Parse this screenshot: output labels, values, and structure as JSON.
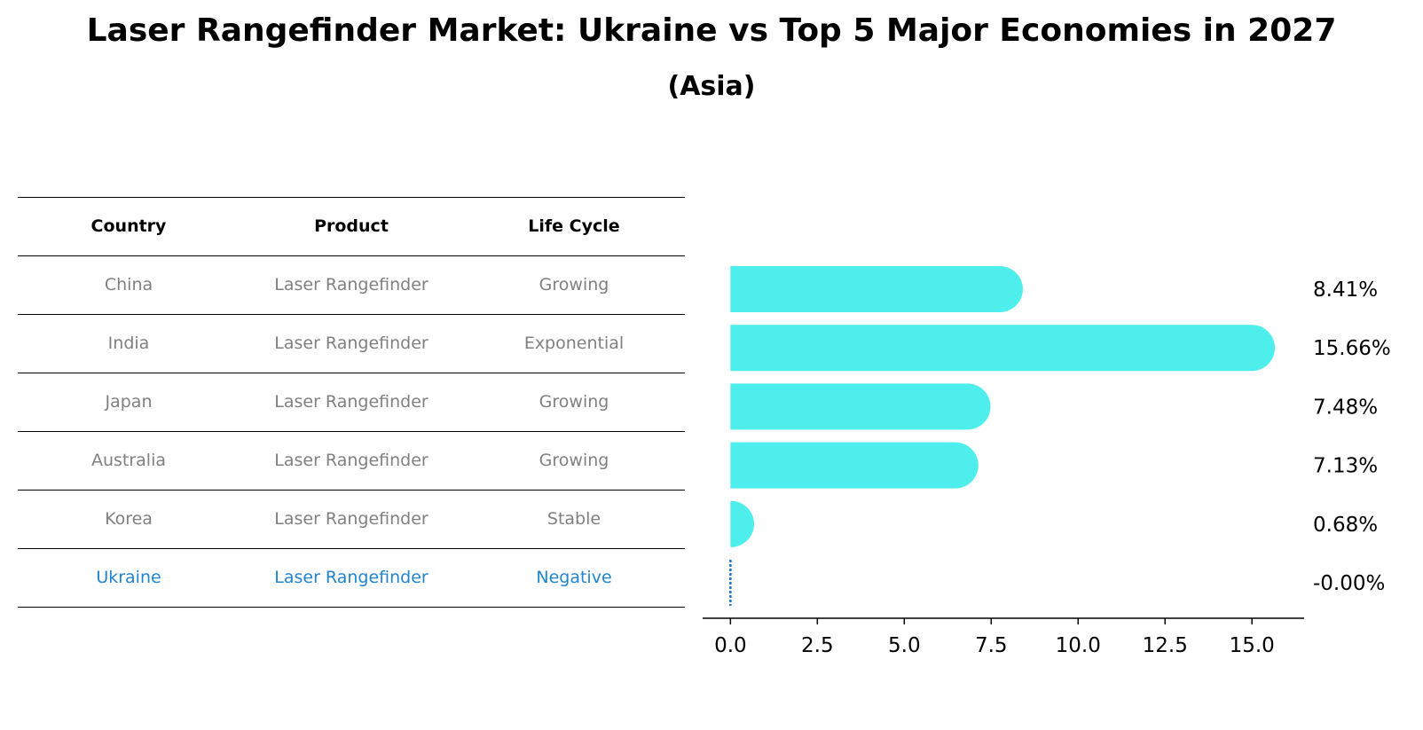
{
  "title": "Laser Rangefinder Market: Ukraine vs Top 5 Major Economies in 2027",
  "subtitle": "(Asia)",
  "table": {
    "headers": [
      "Country",
      "Product",
      "Life Cycle"
    ],
    "rows": [
      [
        "China",
        "Laser Rangefinder",
        "Growing"
      ],
      [
        "India",
        "Laser Rangefinder",
        "Exponential"
      ],
      [
        "Japan",
        "Laser Rangefinder",
        "Growing"
      ],
      [
        "Australia",
        "Laser Rangefinder",
        "Growing"
      ],
      [
        "Korea",
        "Laser Rangefinder",
        "Stable"
      ],
      [
        "Ukraine",
        "Laser Rangefinder",
        "Negative"
      ]
    ],
    "highlight_row": 5
  },
  "chart_data": {
    "type": "bar",
    "orientation": "horizontal",
    "title": "Laser Rangefinder Market: Ukraine vs Top 5 Major Economies in 2027",
    "subtitle": "(Asia)",
    "categories": [
      "China",
      "India",
      "Japan",
      "Australia",
      "Korea",
      "Ukraine"
    ],
    "values": [
      8.41,
      15.66,
      7.48,
      7.13,
      0.68,
      -0.0
    ],
    "value_labels": [
      "8.41%",
      "15.66%",
      "7.48%",
      "7.13%",
      "0.68%",
      "-0.00%"
    ],
    "xlim": [
      -0.8,
      16.5
    ],
    "xticks": [
      0.0,
      2.5,
      5.0,
      7.5,
      10.0,
      12.5,
      15.0
    ],
    "xtick_labels": [
      "0.0",
      "2.5",
      "5.0",
      "7.5",
      "10.0",
      "12.5",
      "15.0"
    ],
    "xlabel": "",
    "ylabel": "",
    "bar_color": "#4eeeec",
    "zero_line_color": "#1f77d0"
  }
}
